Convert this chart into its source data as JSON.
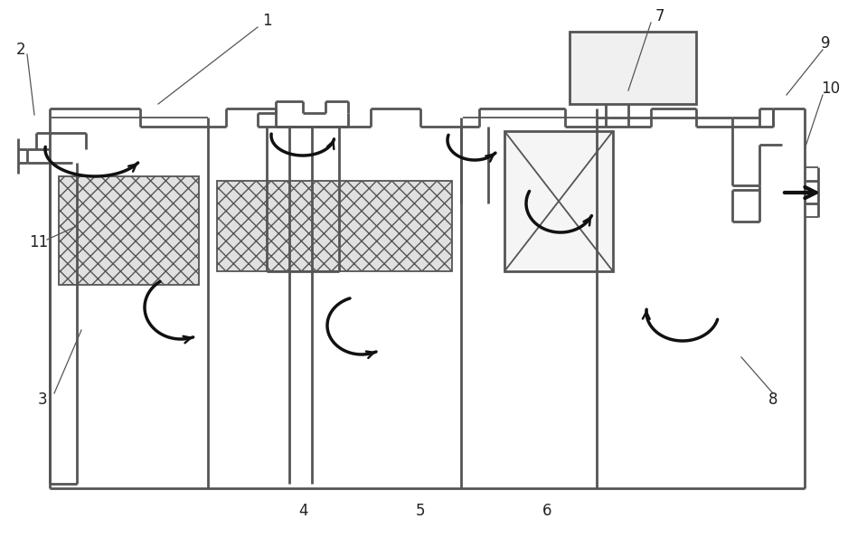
{
  "bg_color": "#ffffff",
  "line_color": "#555555",
  "arrow_color": "#111111",
  "fig_width": 9.38,
  "fig_height": 5.95,
  "dpi": 100
}
